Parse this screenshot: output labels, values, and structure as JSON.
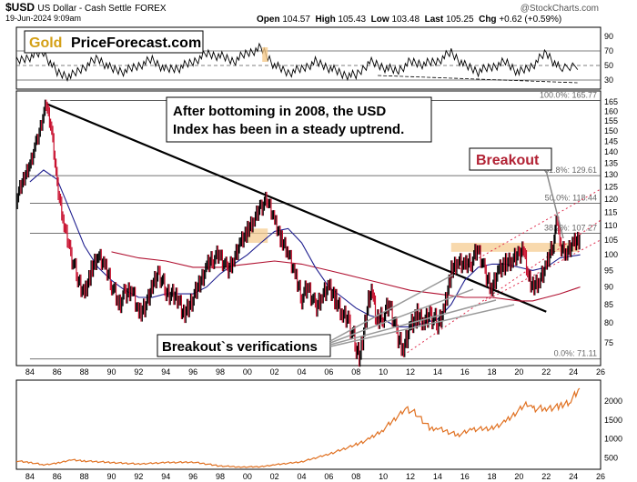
{
  "header": {
    "symbol": "$USD",
    "name": "US Dollar - Cash Settle",
    "exchange": "FOREX",
    "date": "19-Jun-2024 9:09am",
    "watermark": "@StockCharts.com",
    "ohlc": {
      "open_label": "Open",
      "open": "104.57",
      "high_label": "High",
      "high": "105.43",
      "low_label": "Low",
      "low": "103.48",
      "last_label": "Last",
      "last": "105.25",
      "chg_label": "Chg",
      "chg": "+0.62 (+0.59%)"
    }
  },
  "logo": {
    "part1": "Gold",
    "part2": "PriceForecast.com"
  },
  "annotations": {
    "uptrend_line1": "After bottoming in 2008, the USD",
    "uptrend_line2": "Index has been in a steady uptrend.",
    "breakout": "Breakout",
    "verifications": "Breakout`s verifications"
  },
  "colors": {
    "price_up": "#000000",
    "price_down": "#c8102e",
    "ma_short": "#1f1f8f",
    "ma_long": "#b01030",
    "highlight": "#f5c98a",
    "gold_line": "#e07020",
    "trend_channel": "#e03050",
    "breakout_text": "#b22234"
  },
  "chart_data": [
    {
      "type": "line",
      "name": "rsi",
      "ylim": [
        20,
        100
      ],
      "yticks": [
        90,
        70,
        50,
        30
      ],
      "reference_lines": [
        70,
        50,
        30
      ],
      "x": [
        1983,
        1984,
        1985,
        1986,
        1987,
        1988,
        1989,
        1990,
        1991,
        1992,
        1993,
        1994,
        1995,
        1996,
        1997,
        1998,
        1999,
        2000,
        2001,
        2002,
        2003,
        2004,
        2005,
        2006,
        2007,
        2008,
        2009,
        2010,
        2011,
        2012,
        2013,
        2014,
        2015,
        2016,
        2017,
        2018,
        2019,
        2020,
        2021,
        2022,
        2023,
        2024.5
      ],
      "values": [
        55,
        62,
        68,
        40,
        35,
        48,
        60,
        45,
        42,
        50,
        58,
        44,
        47,
        55,
        66,
        63,
        56,
        67,
        74,
        50,
        40,
        45,
        55,
        47,
        38,
        36,
        55,
        48,
        42,
        55,
        52,
        56,
        68,
        50,
        42,
        48,
        55,
        40,
        50,
        68,
        45,
        52
      ]
    },
    {
      "type": "line",
      "name": "usd_index",
      "x_range": [
        1983,
        2026
      ],
      "ylim": [
        70,
        170
      ],
      "log_scale": true,
      "yticks": [
        75,
        80,
        85,
        90,
        95,
        100,
        105,
        110,
        115,
        120,
        125,
        130,
        135,
        140,
        145,
        150,
        155,
        160,
        165
      ],
      "xticks": [
        "84",
        "86",
        "88",
        "90",
        "92",
        "94",
        "96",
        "98",
        "00",
        "02",
        "04",
        "06",
        "08",
        "10",
        "12",
        "14",
        "16",
        "18",
        "20",
        "22",
        "24",
        "26"
      ],
      "x": [
        1983.0,
        1984.0,
        1984.5,
        1985.2,
        1985.6,
        1986.0,
        1986.5,
        1987.0,
        1987.5,
        1988.0,
        1988.5,
        1989.0,
        1989.5,
        1990.0,
        1990.5,
        1991.0,
        1991.5,
        1992.0,
        1992.7,
        1993.0,
        1993.5,
        1994.0,
        1995.0,
        1995.3,
        1996.0,
        1997.0,
        1997.5,
        1998.0,
        1998.5,
        1999.0,
        1999.5,
        2000.0,
        2000.5,
        2001.0,
        2001.5,
        2002.0,
        2002.5,
        2003.0,
        2003.5,
        2004.0,
        2004.5,
        2005.0,
        2005.5,
        2006.0,
        2006.5,
        2007.0,
        2007.5,
        2008.0,
        2008.3,
        2008.9,
        2009.2,
        2009.5,
        2010.0,
        2010.5,
        2011.0,
        2011.5,
        2012.0,
        2012.5,
        2013.0,
        2013.5,
        2014.0,
        2014.5,
        2015.0,
        2015.5,
        2016.0,
        2016.5,
        2017.0,
        2017.5,
        2018.0,
        2018.5,
        2019.0,
        2019.5,
        2020.0,
        2020.3,
        2020.7,
        2021.0,
        2021.5,
        2022.0,
        2022.5,
        2022.8,
        2023.0,
        2023.5,
        2024.0,
        2024.46
      ],
      "values": [
        120,
        135,
        145,
        164,
        150,
        125,
        110,
        100,
        93,
        88,
        95,
        100,
        96,
        91,
        85,
        88,
        90,
        82,
        86,
        90,
        94,
        89,
        86,
        82,
        87,
        96,
        99,
        100,
        95,
        99,
        104,
        108,
        112,
        117,
        120,
        112,
        105,
        101,
        93,
        87,
        90,
        84,
        88,
        90,
        86,
        82,
        80,
        74,
        72,
        86,
        89,
        80,
        82,
        85,
        77,
        74,
        79,
        82,
        80,
        82,
        80,
        84,
        95,
        98,
        96,
        98,
        102,
        94,
        90,
        95,
        97,
        98,
        100,
        103,
        93,
        90,
        92,
        96,
        104,
        112,
        103,
        101,
        104,
        105.25
      ],
      "ma_short": {
        "x": [
          1984,
          1985,
          1986,
          1987,
          1988,
          1989,
          1990,
          1991,
          1992,
          1993,
          1994,
          1995,
          1996,
          1997,
          1998,
          1999,
          2000,
          2001,
          2002,
          2003,
          2004,
          2005,
          2006,
          2007,
          2008,
          2009,
          2010,
          2011,
          2012,
          2013,
          2014,
          2015,
          2016,
          2017,
          2018,
          2019,
          2020,
          2021,
          2022,
          2023,
          2024.5
        ],
        "values": [
          127,
          132,
          128,
          115,
          103,
          96,
          92,
          89,
          87,
          87,
          88,
          88,
          88,
          90,
          94,
          97,
          100,
          104,
          108,
          109,
          104,
          96,
          90,
          87,
          84,
          82,
          81,
          79,
          79,
          80,
          81,
          85,
          92,
          96,
          97,
          97,
          96,
          95,
          96,
          99,
          100
        ]
      },
      "ma_long": {
        "x": [
          1990,
          1992,
          1994,
          1996,
          1998,
          2000,
          2002,
          2004,
          2006,
          2008,
          2010,
          2012,
          2014,
          2016,
          2018,
          2020,
          2021,
          2022,
          2023,
          2024.5
        ],
        "values": [
          101,
          99,
          98,
          96,
          96,
          97,
          98,
          97,
          95,
          93,
          91,
          89,
          88,
          87,
          87,
          86,
          86,
          87,
          88,
          90
        ]
      },
      "fib_levels": [
        {
          "label": "100.0%: 165.77",
          "value": 165.77
        },
        {
          "label": "61.8%: 129.61",
          "value": 129.61
        },
        {
          "label": "50.0%: 118.44",
          "value": 118.44
        },
        {
          "label": "38.2%: 107.27",
          "value": 107.27
        },
        {
          "label": "0.0%: 71.11",
          "value": 71.11
        }
      ],
      "resistance_zone": [
        101,
        104
      ]
    },
    {
      "type": "line",
      "name": "gold",
      "x_range": [
        1983,
        2026
      ],
      "ylim": [
        250,
        2500
      ],
      "yticks": [
        500,
        1000,
        1500,
        2000
      ],
      "x": [
        1983,
        1984,
        1985,
        1986,
        1987,
        1988,
        1990,
        1992,
        1994,
        1996,
        1998,
        1999.5,
        2001,
        2002,
        2004,
        2006,
        2008,
        2009,
        2010,
        2011.7,
        2012.5,
        2013.5,
        2014,
        2015.5,
        2016.5,
        2018,
        2019,
        2020.6,
        2021,
        2022,
        2023,
        2023.8,
        2024.46
      ],
      "values": [
        420,
        380,
        320,
        360,
        450,
        420,
        380,
        340,
        380,
        390,
        290,
        260,
        270,
        320,
        400,
        600,
        850,
        1000,
        1250,
        1800,
        1650,
        1250,
        1280,
        1100,
        1250,
        1280,
        1450,
        1950,
        1800,
        1800,
        1850,
        2000,
        2330
      ]
    }
  ]
}
